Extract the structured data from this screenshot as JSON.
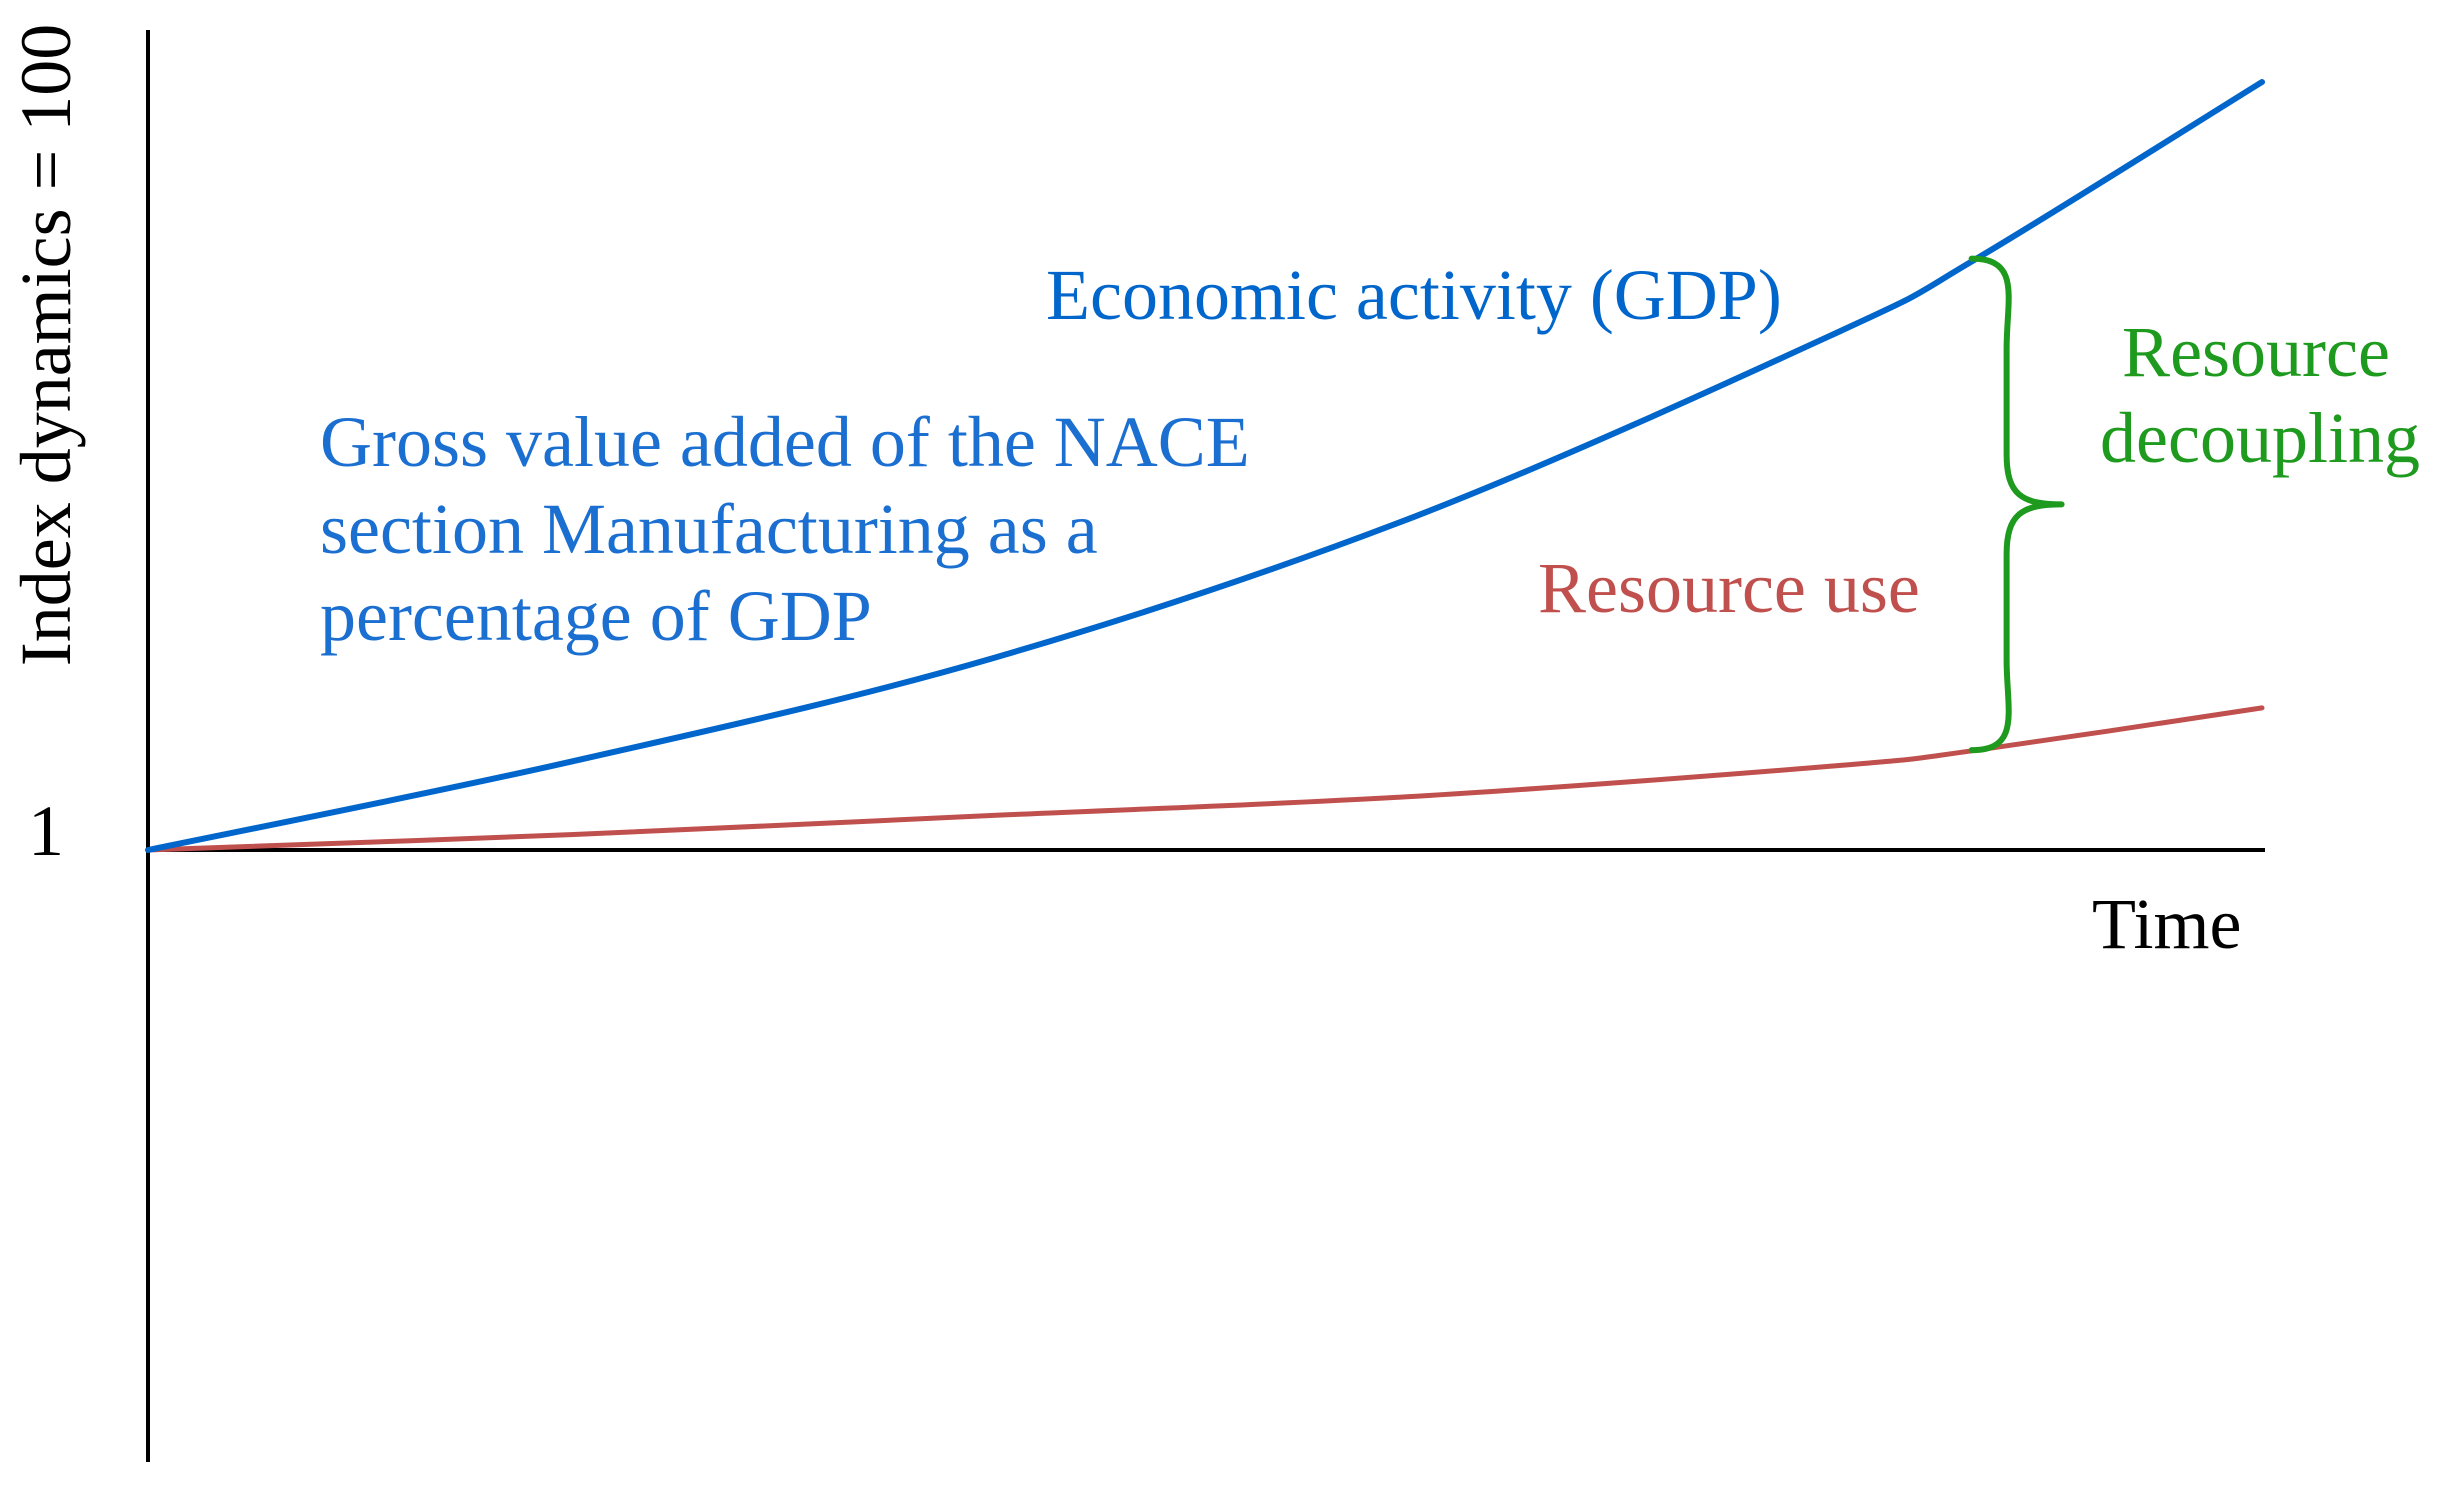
{
  "chart_data": {
    "type": "line",
    "ylabel": "Index dynamics = 100",
    "xlabel": "Time",
    "y_tick_labels": [
      "1"
    ],
    "grid": false,
    "colors": {
      "gdp": "#0066cc",
      "manufacturing_text": "#1a6fd1",
      "resource_use": "#c0504d",
      "decoupling": "#1e9a1e",
      "axis": "#000000"
    },
    "x": [
      0,
      0.2,
      0.4,
      0.6,
      0.8,
      0.865,
      1.0
    ],
    "series": [
      {
        "name": "Economic activity (GDP)",
        "key": "gdp",
        "values": [
          1.0,
          1.23,
          1.5,
          1.87,
          2.35,
          2.54,
          3.0
        ]
      },
      {
        "name": "Resource use",
        "key": "resource_use",
        "values": [
          1.0,
          1.04,
          1.09,
          1.14,
          1.22,
          1.26,
          1.37
        ]
      }
    ],
    "annotations": {
      "manufacturing": [
        "Gross value added of the NACE",
        "section Manufacturing as a",
        "percentage of GDP"
      ],
      "decoupling": [
        "Resource",
        "decoupling"
      ]
    }
  }
}
